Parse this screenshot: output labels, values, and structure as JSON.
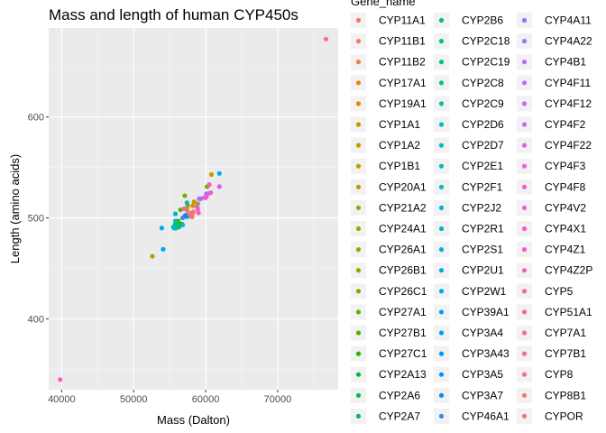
{
  "chart_data": {
    "type": "scatter",
    "title": "Mass and length of human CYP450s",
    "xlabel": "Mass (Dalton)",
    "ylabel": "Length (amino acids)",
    "xlim": [
      38200,
      78400
    ],
    "ylim": [
      330,
      688
    ],
    "x_ticks": [
      40000,
      50000,
      60000,
      70000
    ],
    "x_tick_labels": [
      "40000",
      "50000",
      "60000",
      "70000"
    ],
    "y_ticks": [
      400,
      500,
      600
    ],
    "y_tick_labels": [
      "400",
      "500",
      "600"
    ],
    "grid": true,
    "legend_placement": "right",
    "legend_title": "Gene_name",
    "series": [
      {
        "name": "CYP11A1",
        "color": "#F8766D",
        "x": [
          60100
        ],
        "y": [
          521
        ]
      },
      {
        "name": "CYP11B1",
        "color": "#F37B59",
        "x": [
          57600
        ],
        "y": [
          503
        ]
      },
      {
        "name": "CYP11B2",
        "color": "#ED8141",
        "x": [
          57600
        ],
        "y": [
          503
        ]
      },
      {
        "name": "CYP17A1",
        "color": "#E7861B",
        "x": [
          57400
        ],
        "y": [
          508
        ]
      },
      {
        "name": "CYP19A1",
        "color": "#E08B00",
        "x": [
          58100
        ],
        "y": [
          503
        ]
      },
      {
        "name": "CYP1A1",
        "color": "#D89000",
        "x": [
          58200
        ],
        "y": [
          512
        ]
      },
      {
        "name": "CYP1A2",
        "color": "#CF9400",
        "x": [
          58400
        ],
        "y": [
          516
        ]
      },
      {
        "name": "CYP1B1",
        "color": "#C59900",
        "x": [
          60800
        ],
        "y": [
          543
        ]
      },
      {
        "name": "CYP20A1",
        "color": "#BB9D00",
        "x": [
          52600
        ],
        "y": [
          462
        ]
      },
      {
        "name": "CYP21A2",
        "color": "#B0A100",
        "x": [
          56000
        ],
        "y": [
          494
        ]
      },
      {
        "name": "CYP24A1",
        "color": "#A3A500",
        "x": [
          58900
        ],
        "y": [
          514
        ]
      },
      {
        "name": "CYP26A1",
        "color": "#96A900",
        "x": [
          56200
        ],
        "y": [
          497
        ]
      },
      {
        "name": "CYP26B1",
        "color": "#87AC00",
        "x": [
          57500
        ],
        "y": [
          512
        ]
      },
      {
        "name": "CYP26C1",
        "color": "#77AF00",
        "x": [
          57100
        ],
        "y": [
          522
        ]
      },
      {
        "name": "CYP27A1",
        "color": "#64B200",
        "x": [
          60200
        ],
        "y": [
          531
        ]
      },
      {
        "name": "CYP27B1",
        "color": "#4CB500",
        "x": [
          56500
        ],
        "y": [
          508
        ]
      },
      {
        "name": "CYP27C1",
        "color": "#26B700",
        "x": [
          56100
        ],
        "y": [
          497
        ]
      },
      {
        "name": "CYP2A13",
        "color": "#00BA38",
        "x": [
          56700
        ],
        "y": [
          494
        ]
      },
      {
        "name": "CYP2A6",
        "color": "#00BC50",
        "x": [
          56500
        ],
        "y": [
          494
        ]
      },
      {
        "name": "CYP2A7",
        "color": "#00BE63",
        "x": [
          55800
        ],
        "y": [
          494
        ]
      },
      {
        "name": "CYP2B6",
        "color": "#00C072",
        "x": [
          56300
        ],
        "y": [
          491
        ]
      },
      {
        "name": "CYP2C18",
        "color": "#00C180",
        "x": [
          55700
        ],
        "y": [
          490
        ]
      },
      {
        "name": "CYP2C19",
        "color": "#00C08D",
        "x": [
          55900
        ],
        "y": [
          490
        ]
      },
      {
        "name": "CYP2C8",
        "color": "#00BF98",
        "x": [
          55800
        ],
        "y": [
          490
        ]
      },
      {
        "name": "CYP2C9",
        "color": "#00BFA3",
        "x": [
          55600
        ],
        "y": [
          490
        ]
      },
      {
        "name": "CYP2D6",
        "color": "#00BEAD",
        "x": [
          55800
        ],
        "y": [
          497
        ]
      },
      {
        "name": "CYP2D7",
        "color": "#00BCB6",
        "x": [
          57400
        ],
        "y": [
          515
        ]
      },
      {
        "name": "CYP2E1",
        "color": "#00BBBF",
        "x": [
          56800
        ],
        "y": [
          493
        ]
      },
      {
        "name": "CYP2F1",
        "color": "#00B9C7",
        "x": [
          55500
        ],
        "y": [
          491
        ]
      },
      {
        "name": "CYP2J2",
        "color": "#00B7CF",
        "x": [
          57600
        ],
        "y": [
          502
        ]
      },
      {
        "name": "CYP2R1",
        "color": "#00B4D6",
        "x": [
          57400
        ],
        "y": [
          501
        ]
      },
      {
        "name": "CYP2S1",
        "color": "#00B0DD",
        "x": [
          55800
        ],
        "y": [
          504
        ]
      },
      {
        "name": "CYP2U1",
        "color": "#00ACE4",
        "x": [
          61900
        ],
        "y": [
          544
        ]
      },
      {
        "name": "CYP2W1",
        "color": "#00A8E9",
        "x": [
          53900
        ],
        "y": [
          490
        ]
      },
      {
        "name": "CYP39A1",
        "color": "#00A4EF",
        "x": [
          54100
        ],
        "y": [
          469
        ]
      },
      {
        "name": "CYP3A4",
        "color": "#009FF4",
        "x": [
          57300
        ],
        "y": [
          503
        ]
      },
      {
        "name": "CYP3A43",
        "color": "#0099F8",
        "x": [
          57400
        ],
        "y": [
          503
        ]
      },
      {
        "name": "CYP3A5",
        "color": "#0092FB",
        "x": [
          57100
        ],
        "y": [
          502
        ]
      },
      {
        "name": "CYP3A7",
        "color": "#008BFE",
        "x": [
          57500
        ],
        "y": [
          503
        ]
      },
      {
        "name": "CYP46A1",
        "color": "#3E82FF",
        "x": [
          56800
        ],
        "y": [
          500
        ]
      },
      {
        "name": "CYP4A11",
        "color": "#7C7BFF",
        "x": [
          59300
        ],
        "y": [
          519
        ]
      },
      {
        "name": "CYP4A22",
        "color": "#9A76FE",
        "x": [
          59100
        ],
        "y": [
          519
        ]
      },
      {
        "name": "CYP4B1",
        "color": "#AE70FB",
        "x": [
          58800
        ],
        "y": [
          511
        ]
      },
      {
        "name": "CYP4F11",
        "color": "#BF6AF8",
        "x": [
          60100
        ],
        "y": [
          524
        ]
      },
      {
        "name": "CYP4F12",
        "color": "#CD65F4",
        "x": [
          60400
        ],
        "y": [
          524
        ]
      },
      {
        "name": "CYP4F2",
        "color": "#D961EF",
        "x": [
          59800
        ],
        "y": [
          520
        ]
      },
      {
        "name": "CYP4F22",
        "color": "#E45DEA",
        "x": [
          61900
        ],
        "y": [
          531
        ]
      },
      {
        "name": "CYP4F3",
        "color": "#ED5BE4",
        "x": [
          59900
        ],
        "y": [
          520
        ]
      },
      {
        "name": "CYP4F8",
        "color": "#F359DC",
        "x": [
          60000
        ],
        "y": [
          520
        ]
      },
      {
        "name": "CYP4V2",
        "color": "#F858D4",
        "x": [
          60700
        ],
        "y": [
          525
        ]
      },
      {
        "name": "CYP4X1",
        "color": "#FC58CB",
        "x": [
          58900
        ],
        "y": [
          509
        ]
      },
      {
        "name": "CYP4Z1",
        "color": "#FF59C2",
        "x": [
          59000
        ],
        "y": [
          505
        ]
      },
      {
        "name": "CYP4Z2P",
        "color": "#FF5BB8",
        "x": [
          39800
        ],
        "y": [
          340
        ]
      },
      {
        "name": "CYP5",
        "color": "#FF5EAE",
        "x": [
          60500
        ],
        "y": [
          533
        ]
      },
      {
        "name": "CYP51A1",
        "color": "#FF62A3",
        "x": [
          57000
        ],
        "y": [
          509
        ]
      },
      {
        "name": "CYP7A1",
        "color": "#FF6697",
        "x": [
          57700
        ],
        "y": [
          504
        ]
      },
      {
        "name": "CYP7B1",
        "color": "#FC6A8B",
        "x": [
          58300
        ],
        "y": [
          506
        ]
      },
      {
        "name": "CYP8",
        "color": "#FA6F7E",
        "x": [
          76700
        ],
        "y": [
          677
        ]
      },
      {
        "name": "CYP8B1",
        "color": "#F77376",
        "x": [
          58100
        ],
        "y": [
          501
        ]
      },
      {
        "name": "CYPOR",
        "color": "#F8766D",
        "x": [
          58000
        ],
        "y": [
          505
        ]
      }
    ]
  }
}
